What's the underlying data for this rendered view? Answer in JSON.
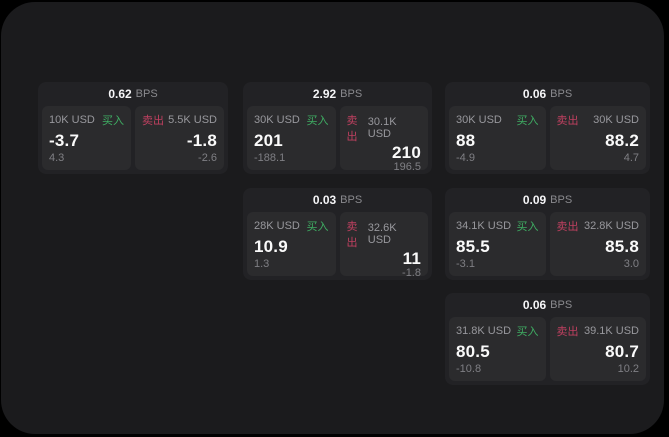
{
  "labels": {
    "bps_suffix": "BPS",
    "buy": "买入",
    "sell": "卖出"
  },
  "colors": {
    "buy_green": "#3fae63",
    "sell_red": "#bf4060",
    "panel_bg": "#1b1b1d",
    "card_bg": "#222225",
    "side_bg": "#2b2b2d"
  },
  "cards": [
    {
      "bps": "0.62",
      "buy": {
        "size": "10K USD",
        "price": "-3.7",
        "delta": "4.3"
      },
      "sell": {
        "size": "5.5K USD",
        "price": "-1.8",
        "delta": "-2.6"
      }
    },
    {
      "bps": "2.92",
      "buy": {
        "size": "30K USD",
        "price": "201",
        "delta": "-188.1"
      },
      "sell": {
        "size": "30.1K USD",
        "price": "210",
        "delta": "196.5"
      }
    },
    {
      "bps": "0.06",
      "buy": {
        "size": "30K USD",
        "price": "88",
        "delta": "-4.9"
      },
      "sell": {
        "size": "30K USD",
        "price": "88.2",
        "delta": "4.7"
      }
    },
    {
      "bps": "0.03",
      "buy": {
        "size": "28K USD",
        "price": "10.9",
        "delta": "1.3"
      },
      "sell": {
        "size": "32.6K USD",
        "price": "11",
        "delta": "-1.8"
      }
    },
    {
      "bps": "0.09",
      "buy": {
        "size": "34.1K USD",
        "price": "85.5",
        "delta": "-3.1"
      },
      "sell": {
        "size": "32.8K USD",
        "price": "85.8",
        "delta": "3.0"
      }
    },
    {
      "bps": "0.06",
      "buy": {
        "size": "31.8K USD",
        "price": "80.5",
        "delta": "-10.8"
      },
      "sell": {
        "size": "39.1K USD",
        "price": "80.7",
        "delta": "10.2"
      }
    }
  ]
}
